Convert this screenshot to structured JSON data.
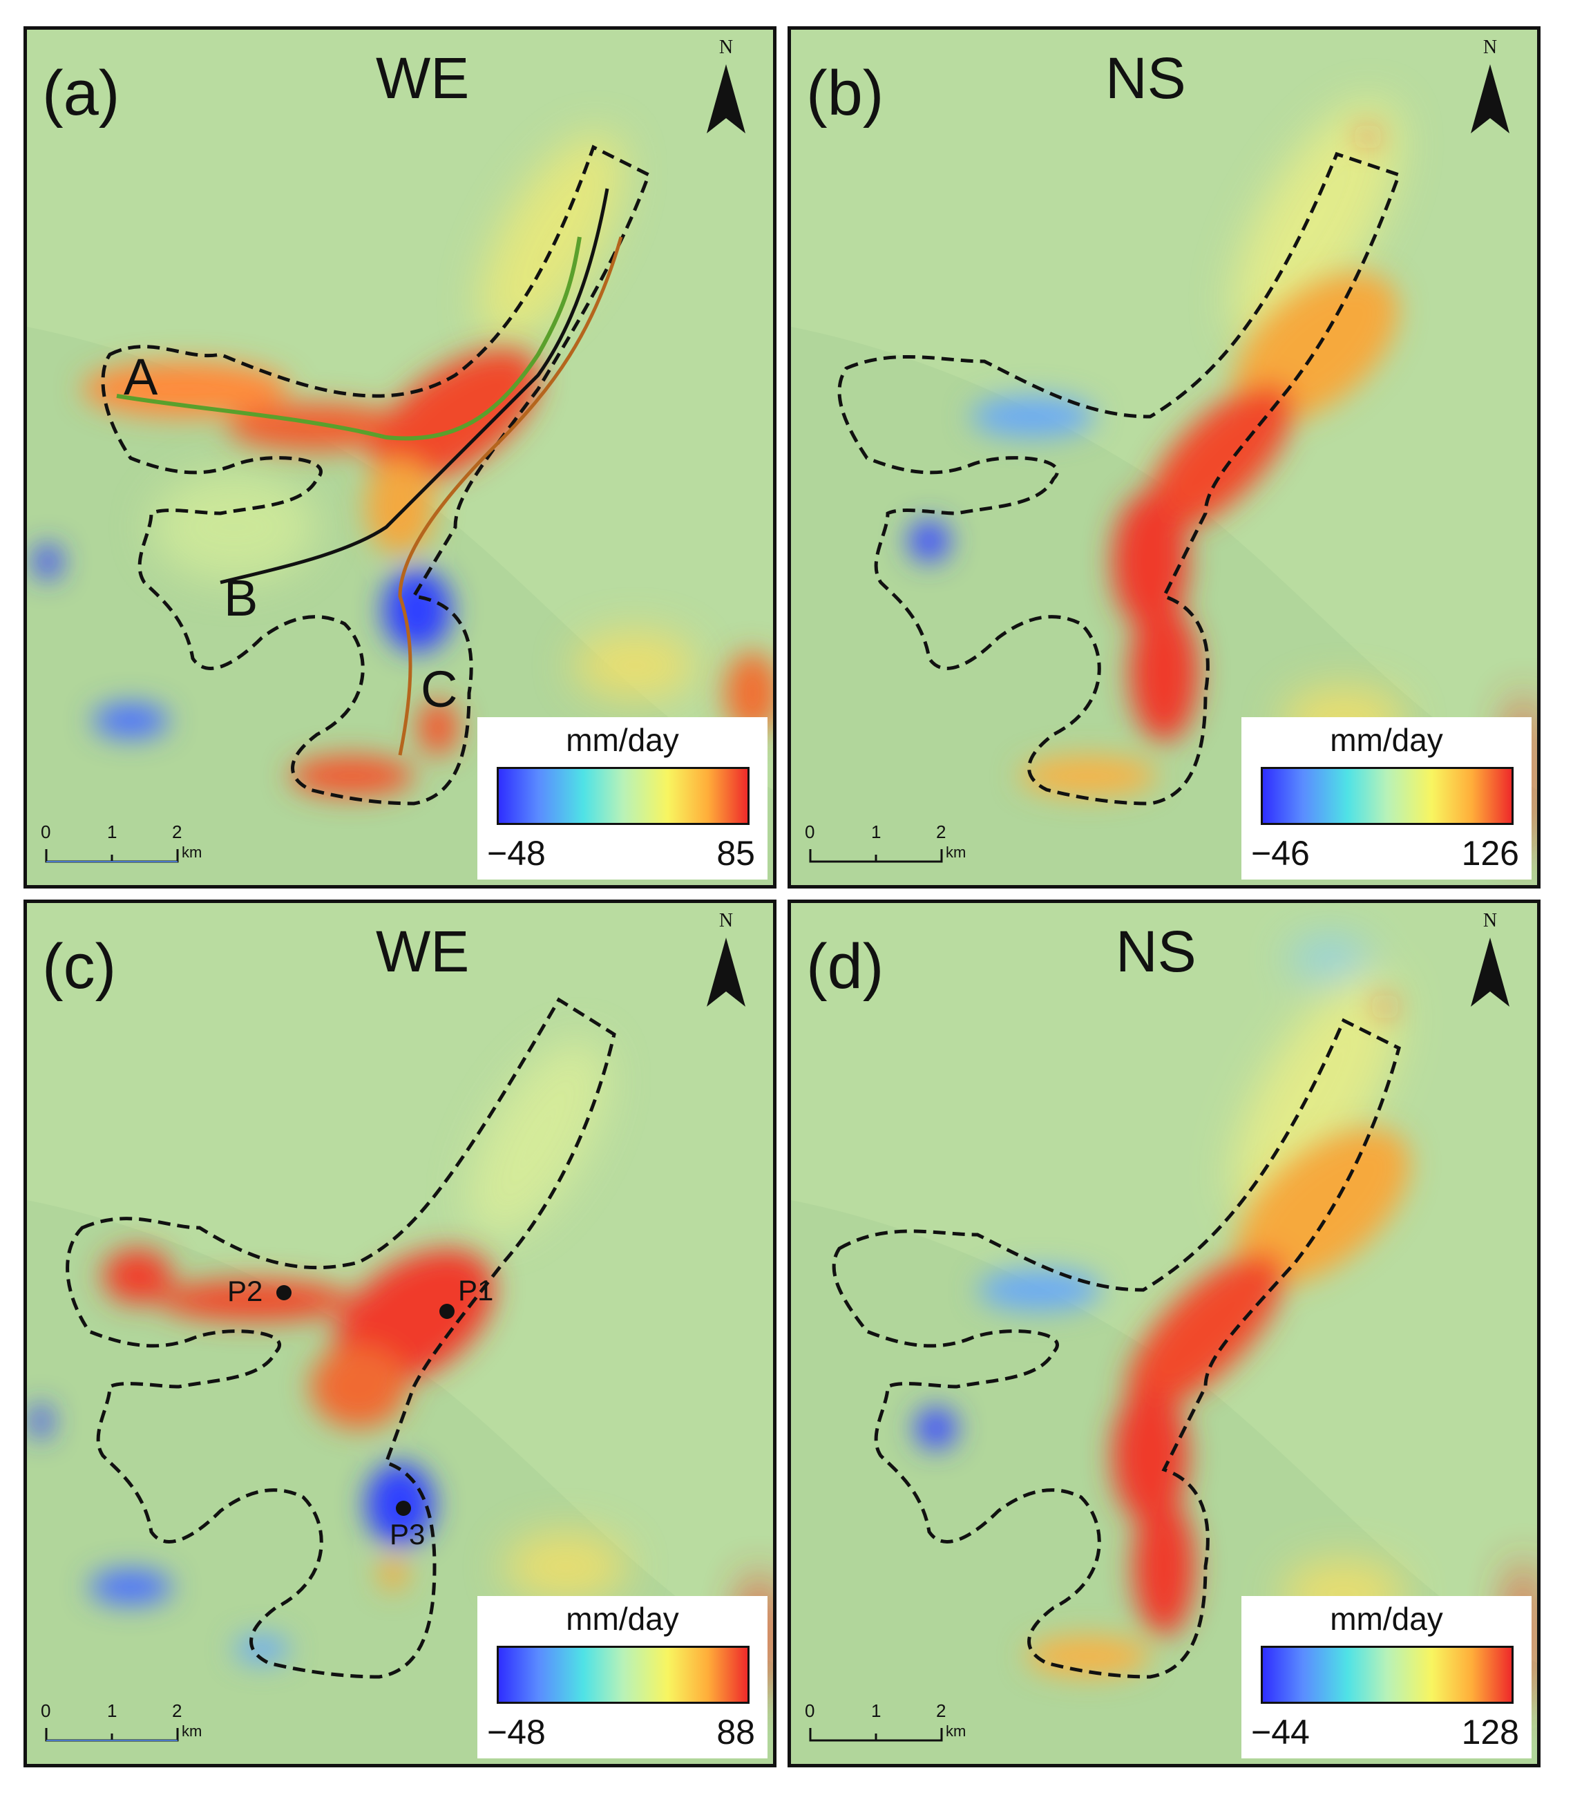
{
  "panels": [
    {
      "id": "a",
      "label": "(a)",
      "direction": "WE",
      "north": "N",
      "scale": {
        "ticks": [
          "0",
          "1",
          "2"
        ],
        "unit": "km"
      },
      "legend": {
        "unit": "mm/day",
        "min": "−48",
        "max": "85"
      },
      "markers": [
        "A",
        "B",
        "C"
      ]
    },
    {
      "id": "b",
      "label": "(b)",
      "direction": "NS",
      "north": "N",
      "scale": {
        "ticks": [
          "0",
          "1",
          "2"
        ],
        "unit": "km"
      },
      "legend": {
        "unit": "mm/day",
        "min": "−46",
        "max": "126"
      }
    },
    {
      "id": "c",
      "label": "(c)",
      "direction": "WE",
      "north": "N",
      "scale": {
        "ticks": [
          "0",
          "1",
          "2"
        ],
        "unit": "km"
      },
      "legend": {
        "unit": "mm/day",
        "min": "−48",
        "max": "88"
      },
      "points": [
        "P1",
        "P2",
        "P3"
      ]
    },
    {
      "id": "d",
      "label": "(d)",
      "direction": "NS",
      "north": "N",
      "scale": {
        "ticks": [
          "0",
          "1",
          "2"
        ],
        "unit": "km"
      },
      "legend": {
        "unit": "mm/day",
        "min": "−44",
        "max": "128"
      }
    }
  ],
  "colormap": {
    "low": "#2f2fff",
    "mid": "#b8f2b8",
    "high": "#ee2a2a"
  },
  "profile_colors": {
    "A": "#5aa02c",
    "B": "#111111",
    "C": "#b5651d"
  }
}
